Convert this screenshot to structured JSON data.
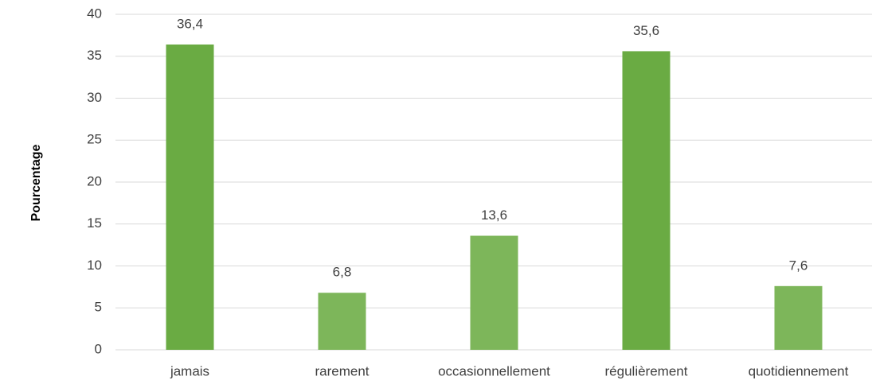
{
  "chart_data": {
    "type": "bar",
    "ylabel": "Pourcentage",
    "categories": [
      "jamais",
      "rarement",
      "occasionnellement",
      "régulièrement",
      "quotidiennement"
    ],
    "values": [
      36.4,
      6.8,
      13.6,
      35.6,
      7.6
    ],
    "value_labels": [
      "36,4",
      "6,8",
      "13,6",
      "35,6",
      "7,6"
    ],
    "colors": [
      "#6aab43",
      "#7db65a",
      "#7db65a",
      "#6aab43",
      "#7db65a"
    ],
    "ylim": [
      0,
      40
    ],
    "yticks": [
      0,
      5,
      10,
      15,
      20,
      25,
      30,
      35,
      40
    ],
    "grid": true
  }
}
